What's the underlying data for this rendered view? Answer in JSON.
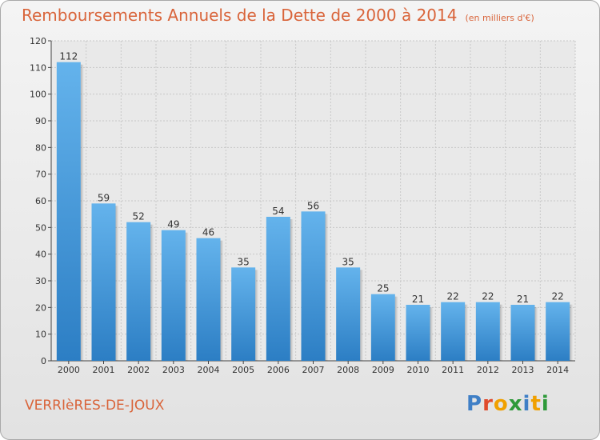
{
  "header": {
    "title": "Remboursements Annuels de la Dette de 2000 à 2014",
    "unit": "(en milliers d'€)"
  },
  "footer": {
    "commune": "VERRIèRES-DE-JOUX",
    "logo_text": "Proxiti"
  },
  "colors": {
    "title": "#d9643a",
    "bar_top": "#64b3ec",
    "bar_bottom": "#2c7ec4",
    "grid": "#c8c8c8"
  },
  "chart_data": {
    "type": "bar",
    "categories": [
      "2000",
      "2001",
      "2002",
      "2003",
      "2004",
      "2005",
      "2006",
      "2007",
      "2008",
      "2009",
      "2010",
      "2011",
      "2012",
      "2013",
      "2014"
    ],
    "values": [
      112,
      59,
      52,
      49,
      46,
      35,
      54,
      56,
      35,
      25,
      21,
      22,
      22,
      21,
      22
    ],
    "title": "Remboursements Annuels de la Dette de 2000 à 2014",
    "xlabel": "",
    "ylabel": "",
    "ylim": [
      0,
      120
    ],
    "yticks": [
      0,
      10,
      20,
      30,
      40,
      50,
      60,
      70,
      80,
      90,
      100,
      110,
      120
    ],
    "grid": true,
    "data_labels": true
  }
}
